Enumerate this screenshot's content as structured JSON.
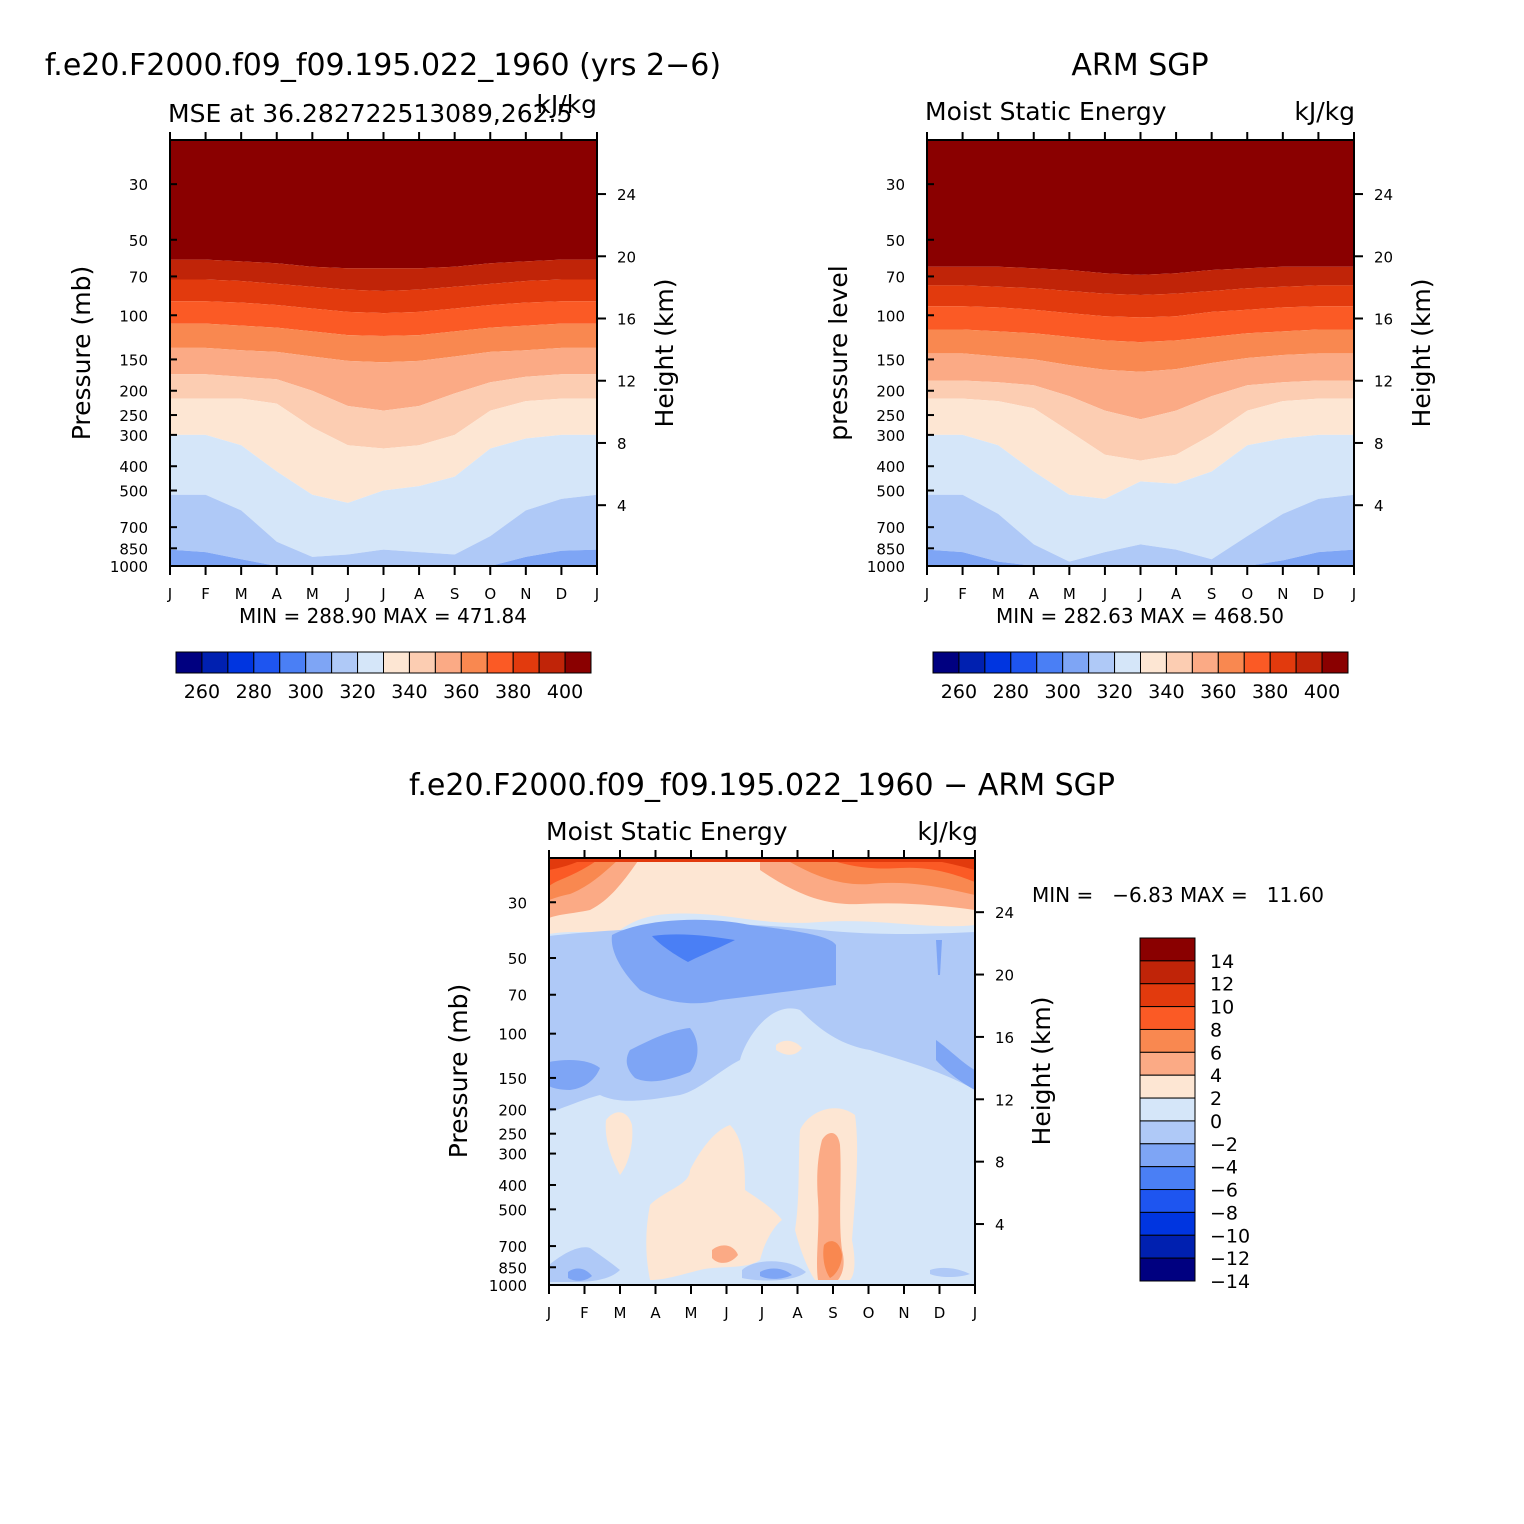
{
  "chart_data": [
    {
      "type": "heatmap",
      "title": "f.e20.F2000.f09_f09.195.022_1960 (yrs 2−6)",
      "subtitle_left": "MSE at 36.282722513089,262.5",
      "subtitle_right": "kJ/kg",
      "ylabel": "Pressure (mb)",
      "ylabel_right": "Height (km)",
      "x_ticks": [
        "J",
        "F",
        "M",
        "A",
        "M",
        "J",
        "J",
        "A",
        "S",
        "O",
        "N",
        "D",
        "J"
      ],
      "y_ticks": [
        "30",
        "50",
        "70",
        "100",
        "150",
        "200",
        "250",
        "300",
        "400",
        "500",
        "700",
        "850",
        "1000"
      ],
      "y_ticks_right": [
        "24",
        "20",
        "16",
        "12",
        "8",
        "4"
      ],
      "stats": "MIN = 288.90 MAX = 471.84",
      "colorbar_labels": [
        "260",
        "280",
        "300",
        "320",
        "340",
        "360",
        "380",
        "400"
      ],
      "colorbar_colors": [
        "#000080",
        "#0020b0",
        "#0035e0",
        "#1e55f0",
        "#4a7ff5",
        "#7ea5f5",
        "#afc9f7",
        "#d5e6f9",
        "#fde6d3",
        "#fccdb2",
        "#fbaa85",
        "#f98850",
        "#fb5a25",
        "#e23a0d",
        "#c02408",
        "#8a0000"
      ],
      "range_ylim": [
        1000,
        20
      ],
      "levels": {
        "months": [
          0,
          1,
          2,
          3,
          4,
          5,
          6,
          7,
          8,
          9,
          10,
          11,
          12
        ],
        "boundaries_mb": [
          [
            60,
            60,
            61,
            62,
            64,
            65,
            65,
            65,
            64,
            62,
            61,
            60,
            60
          ],
          [
            72,
            72,
            73,
            75,
            77,
            79,
            80,
            79,
            77,
            75,
            73,
            72,
            72
          ],
          [
            88,
            88,
            89,
            91,
            94,
            97,
            98,
            97,
            94,
            91,
            89,
            88,
            88
          ],
          [
            108,
            108,
            110,
            112,
            116,
            120,
            121,
            120,
            116,
            112,
            110,
            108,
            108
          ],
          [
            135,
            135,
            138,
            140,
            146,
            152,
            154,
            152,
            146,
            140,
            138,
            135,
            135
          ],
          [
            172,
            172,
            176,
            180,
            200,
            230,
            240,
            230,
            205,
            185,
            176,
            172,
            172
          ],
          [
            215,
            215,
            215,
            225,
            280,
            330,
            340,
            330,
            300,
            240,
            220,
            215,
            215
          ],
          [
            300,
            300,
            330,
            420,
            520,
            560,
            500,
            480,
            440,
            340,
            310,
            300,
            300
          ],
          [
            520,
            520,
            600,
            800,
            920,
            900,
            860,
            880,
            900,
            760,
            600,
            540,
            520
          ],
          [
            860,
            880,
            940,
            1000,
            1000,
            1000,
            1000,
            1000,
            1000,
            1000,
            920,
            870,
            860
          ]
        ],
        "band_colors": [
          "#8a0000",
          "#c02408",
          "#e23a0d",
          "#fb5a25",
          "#f98850",
          "#fbaa85",
          "#fccdb2",
          "#fde6d3",
          "#d5e6f9",
          "#afc9f7",
          "#7ea5f5"
        ]
      }
    },
    {
      "type": "heatmap",
      "title": "ARM SGP",
      "subtitle_left": "Moist Static Energy",
      "subtitle_right": "kJ/kg",
      "ylabel": "pressure level",
      "ylabel_right": "Height (km)",
      "x_ticks": [
        "J",
        "F",
        "M",
        "A",
        "M",
        "J",
        "J",
        "A",
        "S",
        "O",
        "N",
        "D",
        "J"
      ],
      "y_ticks": [
        "30",
        "50",
        "70",
        "100",
        "150",
        "200",
        "250",
        "300",
        "400",
        "500",
        "700",
        "850",
        "1000"
      ],
      "y_ticks_right": [
        "24",
        "20",
        "16",
        "12",
        "8",
        "4"
      ],
      "stats": "MIN = 282.63 MAX = 468.50",
      "colorbar_labels": [
        "260",
        "280",
        "300",
        "320",
        "340",
        "360",
        "380",
        "400"
      ],
      "colorbar_colors": [
        "#000080",
        "#0020b0",
        "#0035e0",
        "#1e55f0",
        "#4a7ff5",
        "#7ea5f5",
        "#afc9f7",
        "#d5e6f9",
        "#fde6d3",
        "#fccdb2",
        "#fbaa85",
        "#f98850",
        "#fb5a25",
        "#e23a0d",
        "#c02408",
        "#8a0000"
      ],
      "range_ylim": [
        1000,
        20
      ],
      "levels": {
        "months": [
          0,
          1,
          2,
          3,
          4,
          5,
          6,
          7,
          8,
          9,
          10,
          11,
          12
        ],
        "boundaries_mb": [
          [
            64,
            64,
            64,
            65,
            66,
            68,
            69,
            68,
            66,
            65,
            64,
            64,
            64
          ],
          [
            76,
            76,
            77,
            78,
            80,
            82,
            83,
            82,
            80,
            78,
            77,
            76,
            76
          ],
          [
            92,
            92,
            93,
            95,
            98,
            101,
            102,
            101,
            97,
            95,
            93,
            92,
            92
          ],
          [
            114,
            114,
            116,
            118,
            122,
            126,
            128,
            126,
            122,
            118,
            116,
            114,
            114
          ],
          [
            142,
            142,
            146,
            150,
            158,
            165,
            168,
            164,
            155,
            148,
            144,
            142,
            142
          ],
          [
            182,
            182,
            185,
            190,
            210,
            240,
            260,
            240,
            210,
            190,
            185,
            182,
            182
          ],
          [
            215,
            215,
            220,
            235,
            290,
            360,
            380,
            360,
            300,
            240,
            220,
            215,
            215
          ],
          [
            300,
            300,
            330,
            420,
            520,
            540,
            460,
            470,
            420,
            330,
            310,
            300,
            300
          ],
          [
            520,
            520,
            620,
            820,
            960,
            880,
            820,
            860,
            940,
            760,
            620,
            540,
            520
          ],
          [
            860,
            880,
            960,
            1000,
            1000,
            1000,
            1000,
            1000,
            1000,
            1000,
            950,
            880,
            860
          ]
        ],
        "band_colors": [
          "#8a0000",
          "#c02408",
          "#e23a0d",
          "#fb5a25",
          "#f98850",
          "#fbaa85",
          "#fccdb2",
          "#fde6d3",
          "#d5e6f9",
          "#afc9f7",
          "#7ea5f5"
        ]
      }
    },
    {
      "type": "heatmap",
      "title": "f.e20.F2000.f09_f09.195.022_1960 − ARM SGP",
      "subtitle_left": "Moist Static Energy",
      "subtitle_right": "kJ/kg",
      "ylabel": "Pressure (mb)",
      "ylabel_right": "Height (km)",
      "x_ticks": [
        "J",
        "F",
        "M",
        "A",
        "M",
        "J",
        "J",
        "A",
        "S",
        "O",
        "N",
        "D",
        "J"
      ],
      "y_ticks": [
        "30",
        "50",
        "70",
        "100",
        "150",
        "200",
        "250",
        "300",
        "400",
        "500",
        "700",
        "850",
        "1000"
      ],
      "y_ticks_right": [
        "24",
        "20",
        "16",
        "12",
        "8",
        "4"
      ],
      "stats": "MIN =   −6.83 MAX =   11.60",
      "colorbar_labels": [
        "14",
        "12",
        "10",
        "8",
        "6",
        "4",
        "2",
        "0",
        "−2",
        "−4",
        "−6",
        "−8",
        "−10",
        "−12",
        "−14"
      ],
      "colorbar_colors": [
        "#8a0000",
        "#c02408",
        "#e23a0d",
        "#fb5a25",
        "#f98850",
        "#fbaa85",
        "#fde6d3",
        "#d5e6f9",
        "#afc9f7",
        "#7ea5f5",
        "#4a7ff5",
        "#1e55f0",
        "#0035e0",
        "#0020b0",
        "#000080"
      ],
      "range_ylim": [
        1000,
        20
      ],
      "base_color": "#d5e6f9"
    }
  ]
}
